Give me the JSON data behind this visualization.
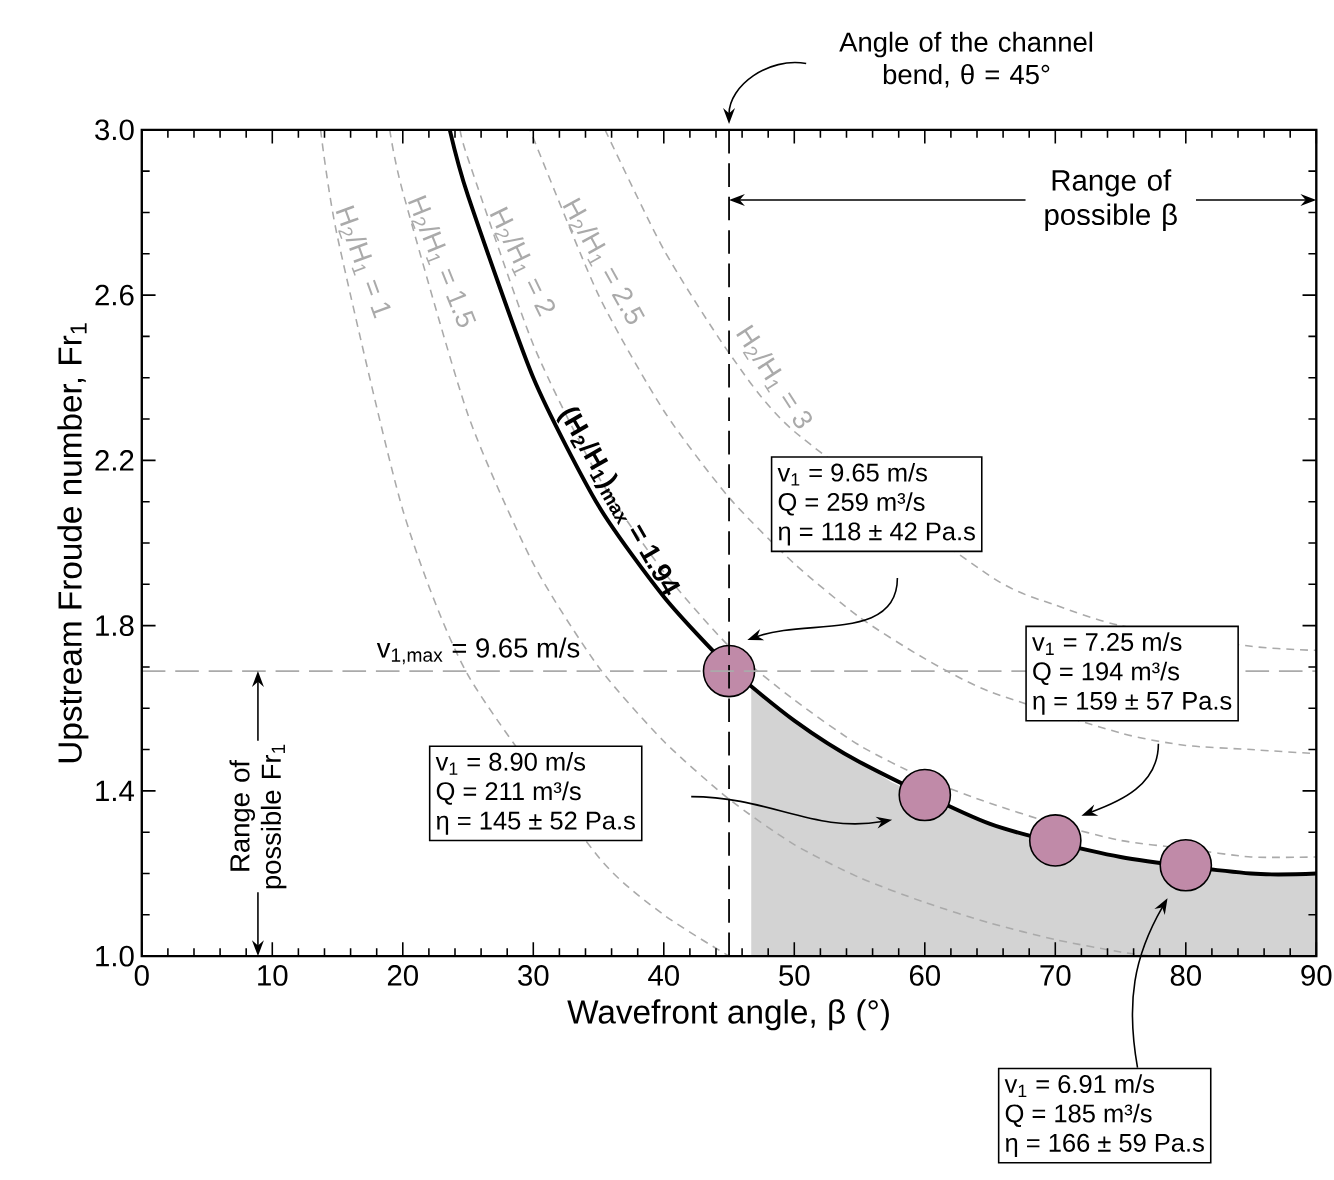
{
  "chart_data": {
    "type": "line",
    "xlabel": "Wavefront angle, β (°)",
    "ylabel": "Upstream Froude number, Fr$_{1}$",
    "xlim": [
      0,
      90
    ],
    "ylim": [
      1,
      3
    ],
    "xticks": [
      0,
      10,
      20,
      30,
      40,
      50,
      60,
      70,
      80,
      90
    ],
    "yticks": [
      {
        "value": 1,
        "label": "1.0"
      },
      1.4,
      1.8,
      2.2,
      2.6,
      {
        "value": 3,
        "label": "3.0"
      }
    ],
    "series": [
      {
        "type": "area",
        "color": "#d3d3d3",
        "x": [
          46.7,
          50,
          52.5,
          55,
          57.5,
          62.5,
          65,
          67.5,
          72.5,
          75,
          77.5,
          82.5,
          85,
          90
        ],
        "values": [
          1.65,
          1.57,
          1.51,
          1.47,
          1.42,
          1.35,
          1.32,
          1.3,
          1.26,
          1.24,
          1.23,
          1.21,
          1.2,
          1.2
        ]
      },
      {
        "name": "H$_{2}$/H$_{1}$ = 1",
        "color": "#aaaaaa",
        "line_style": "dashed",
        "x": [
          13.7,
          15,
          20,
          25,
          30,
          35,
          40,
          45
        ],
        "values": [
          3.0,
          2.74,
          2.08,
          1.68,
          null,
          1.24,
          1.1,
          1.0
        ]
      },
      {
        "name": "H$_{2}$/H$_{1}$ = 1.5",
        "color": "#aaaaaa",
        "line_style": "dashed",
        "x": [
          19.0,
          20,
          25,
          30,
          35,
          40,
          45,
          50,
          55,
          60,
          65,
          70,
          75,
          77.4
        ],
        "values": [
          3.0,
          2.85,
          2.31,
          1.95,
          1.7,
          1.52,
          1.38,
          1.27,
          1.19,
          1.13,
          1.08,
          1.04,
          1.01,
          1.0
        ]
      },
      {
        "name": "H$_{2}$/H$_{1}$ = 2",
        "color": "#aaaaaa",
        "line_style": "dashed",
        "x": [
          24.4,
          25,
          30,
          35,
          40,
          45,
          50,
          55,
          60,
          65,
          70,
          75,
          80,
          85,
          90
        ],
        "values": [
          3.0,
          2.93,
          2.48,
          2.16,
          1.93,
          1.75,
          1.62,
          1.51,
          1.43,
          1.37,
          1.32,
          1.28,
          1.26,
          1.24,
          1.24
        ]
      },
      {
        "name": "H$_{2}$/H$_{1}$ = 2.5",
        "color": "#aaaaaa",
        "line_style": "dashed",
        "x": [
          29.8,
          30,
          35,
          40,
          45,
          50,
          55,
          60,
          65,
          70,
          75,
          80,
          85,
          90
        ],
        "values": [
          3.0,
          2.98,
          2.6,
          2.32,
          2.11,
          1.95,
          1.82,
          1.72,
          1.64,
          null,
          1.54,
          1.51,
          1.5,
          1.49
        ]
      },
      {
        "name": "H$_{2}$/H$_{1}$ = 3",
        "color": "#aaaaaa",
        "line_style": "dashed",
        "x": [
          35.5,
          40,
          45,
          50,
          55,
          60,
          65,
          70,
          75,
          80,
          85,
          90
        ],
        "values": [
          3.0,
          2.71,
          2.46,
          2.27,
          null,
          null,
          1.92,
          1.85,
          1.8,
          null,
          1.75,
          1.74
        ]
      },
      {
        "name": "(H$_{2}$/H$_{1}$)$_{max}$ = 1.94",
        "color": "#000000",
        "line_style": "solid",
        "x": [
          23.6,
          25,
          30,
          35,
          40,
          45,
          50,
          55,
          60,
          65,
          70,
          75,
          80,
          85,
          90
        ],
        "values": [
          3.0,
          2.84,
          2.4,
          2.09,
          1.87,
          1.7,
          1.57,
          1.47,
          null,
          1.32,
          null,
          1.24,
          null,
          1.2,
          1.2
        ]
      },
      {
        "type": "scatter",
        "color": "#c08aa8",
        "x": [
          45,
          60,
          70,
          80
        ],
        "values": [
          1.69,
          1.39,
          1.28,
          1.22
        ]
      }
    ],
    "ref_lines": [
      {
        "axis": "x",
        "value": 45,
        "color": "#000000",
        "line_style": "dashed"
      },
      {
        "axis": "y",
        "value": 1.69,
        "color": "#aaaaaa",
        "line_style": "dashed"
      }
    ],
    "annotations": [
      "Angle of the channel bend, θ = 45°",
      "v$_{1,max}$ = 9.65 m/s",
      "Range of possible β",
      "Range of possible Fr$_{1}$",
      "v$_{1}$ = 9.65 m/s",
      "Q = 259 m³/s",
      "η = 118 ± 42 Pa.s",
      "v$_{1}$ = 8.90 m/s",
      "Q = 211 m³/s",
      "η = 145 ± 52 Pa.s",
      "v$_{1}$ = 7.25 m/s",
      "Q = 194 m³/s",
      "η = 159 ± 57 Pa.s",
      "v$_{1}$ = 6.91 m/s",
      "Q = 185 m³/s",
      "η = 166 ± 59 Pa.s"
    ]
  }
}
